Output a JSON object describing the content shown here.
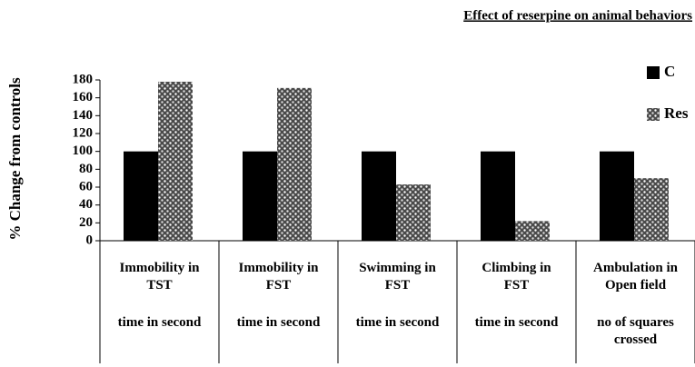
{
  "chart_data": {
    "type": "bar",
    "title": "Effect of reserpine on animal behaviors",
    "y_label": "% Change from controls",
    "categories": [
      "Immobility in TST",
      "Immobility in FST",
      "Swimming in FST",
      "Climbing in FST",
      "Ambulation in Open field"
    ],
    "units": [
      "time in second",
      "time in second",
      "time in second",
      "time in second",
      "no of squares crossed"
    ],
    "series": [
      {
        "name": "C",
        "color": "#000000",
        "values": [
          100,
          100,
          100,
          100,
          100
        ]
      },
      {
        "name": "Res",
        "color": "#4a4a4a",
        "pattern": "dots",
        "values": [
          178,
          171,
          63,
          22,
          70
        ]
      }
    ],
    "ylim": [
      0,
      180
    ],
    "yticks": [
      0,
      20,
      40,
      60,
      80,
      100,
      120,
      140,
      160,
      180
    ],
    "grid": false,
    "legend": "upper right"
  }
}
